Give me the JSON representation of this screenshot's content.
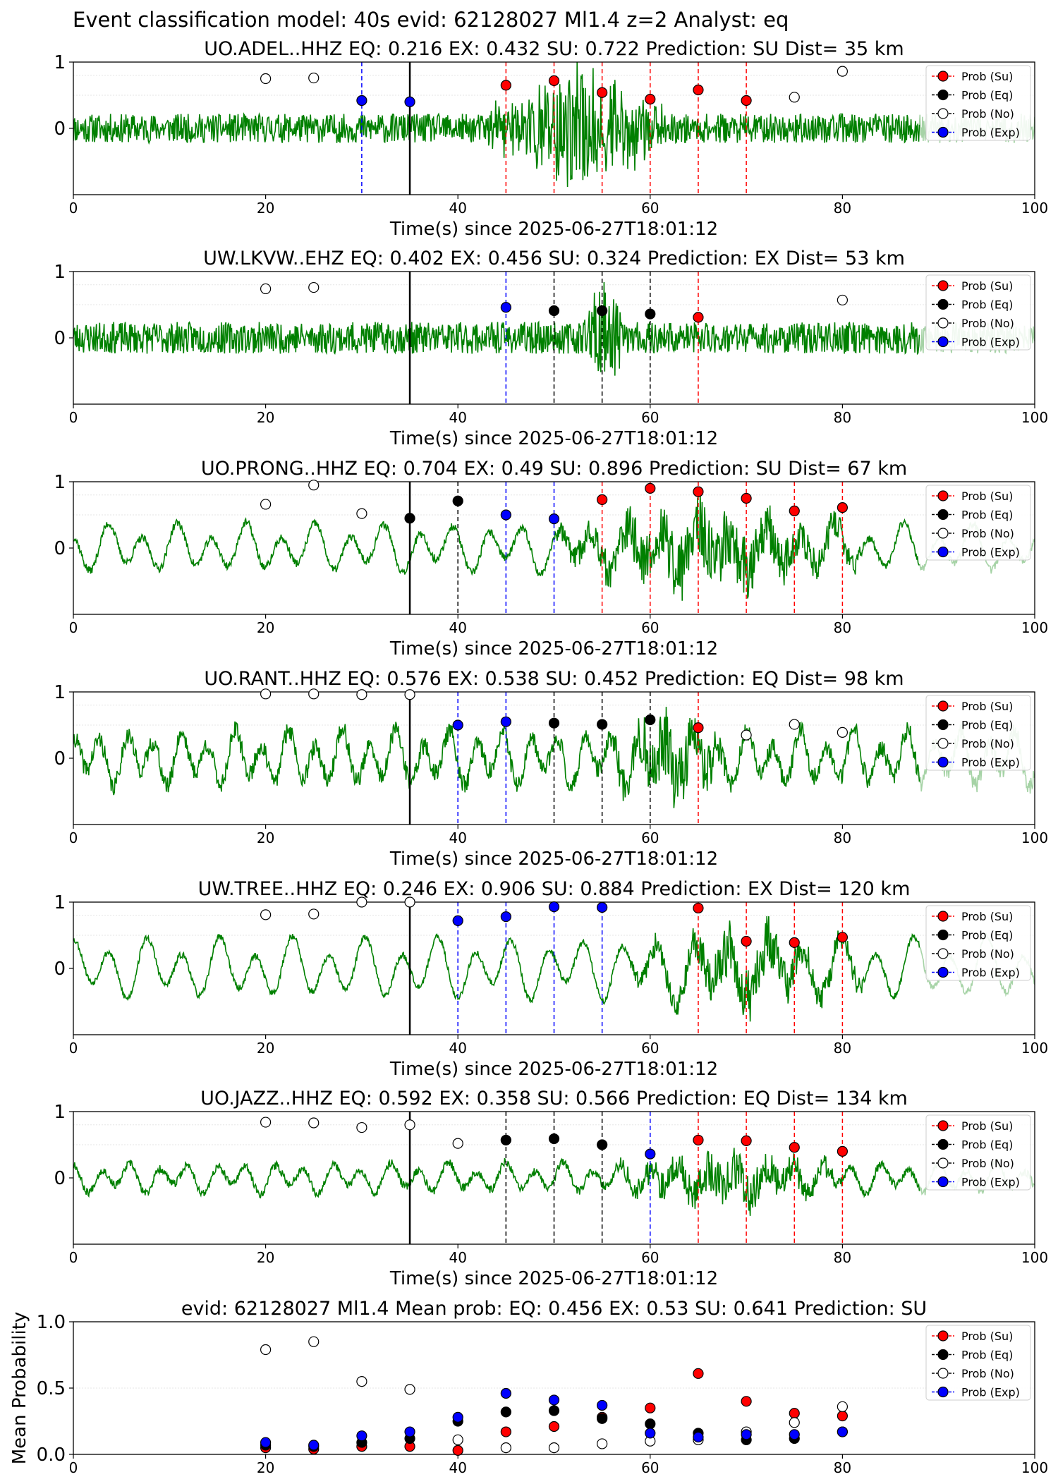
{
  "figure_title": "Event classification model: 40s evid: 62128027 Ml1.4 z=2 Analyst: eq",
  "legend_labels": [
    "Prob (Su)",
    "Prob (Eq)",
    "Prob (No)",
    "Prob (Exp)"
  ],
  "colors": {
    "su": "#ff0000",
    "eq": "#000000",
    "no": "#ffffff",
    "exp": "#0000ff",
    "waveform": "#008000",
    "vline_solid": "#000000"
  },
  "chart_data": [
    {
      "type": "line",
      "title": "UO.ADEL..HHZ   EQ: 0.216  EX: 0.432  SU: 0.722   Prediction: SU    Dist= 35 km",
      "xlabel": "Time(s) since 2025-06-27T18:01:12",
      "ylabel": "",
      "xlim": [
        0,
        100
      ],
      "ylim": [
        -1,
        1
      ],
      "xticks": [
        "0",
        "20",
        "40",
        "60",
        "80",
        "100"
      ],
      "yticks": [
        "0",
        "1"
      ],
      "waveform": {
        "style": "noise",
        "noise_amp": 0.22,
        "burst_start": 43,
        "burst_end": 62,
        "burst_amp": 0.85,
        "seed": 11
      },
      "solid_line_x": 35,
      "dashed_lines": [
        {
          "x": 30,
          "cls": "exp"
        },
        {
          "x": 45,
          "cls": "su"
        },
        {
          "x": 50,
          "cls": "su"
        },
        {
          "x": 55,
          "cls": "su"
        },
        {
          "x": 60,
          "cls": "su"
        },
        {
          "x": 65,
          "cls": "su"
        },
        {
          "x": 70,
          "cls": "su"
        }
      ],
      "points": [
        {
          "x": 20,
          "y": 0.75,
          "cls": "no"
        },
        {
          "x": 25,
          "y": 0.76,
          "cls": "no"
        },
        {
          "x": 30,
          "y": 0.42,
          "cls": "exp"
        },
        {
          "x": 35,
          "y": 0.4,
          "cls": "exp"
        },
        {
          "x": 45,
          "y": 0.65,
          "cls": "su"
        },
        {
          "x": 50,
          "y": 0.72,
          "cls": "su"
        },
        {
          "x": 55,
          "y": 0.54,
          "cls": "su"
        },
        {
          "x": 60,
          "y": 0.44,
          "cls": "su"
        },
        {
          "x": 65,
          "y": 0.58,
          "cls": "su"
        },
        {
          "x": 70,
          "y": 0.42,
          "cls": "su"
        },
        {
          "x": 75,
          "y": 0.47,
          "cls": "no"
        },
        {
          "x": 80,
          "y": 0.86,
          "cls": "no"
        }
      ]
    },
    {
      "type": "line",
      "title": "UW.LKVW..EHZ   EQ: 0.402  EX: 0.456  SU: 0.324   Prediction: EX    Dist= 53 km",
      "xlabel": "Time(s) since 2025-06-27T18:01:12",
      "ylabel": "",
      "xlim": [
        0,
        100
      ],
      "ylim": [
        -1,
        1
      ],
      "xticks": [
        "0",
        "20",
        "40",
        "60",
        "80",
        "100"
      ],
      "yticks": [
        "0",
        "1"
      ],
      "waveform": {
        "style": "noise",
        "noise_amp": 0.24,
        "burst_start": 53,
        "burst_end": 57,
        "burst_amp": 0.85,
        "seed": 23
      },
      "solid_line_x": 35,
      "dashed_lines": [
        {
          "x": 45,
          "cls": "exp"
        },
        {
          "x": 50,
          "cls": "eq"
        },
        {
          "x": 55,
          "cls": "eq"
        },
        {
          "x": 60,
          "cls": "eq"
        },
        {
          "x": 65,
          "cls": "su"
        }
      ],
      "points": [
        {
          "x": 20,
          "y": 0.74,
          "cls": "no"
        },
        {
          "x": 25,
          "y": 0.76,
          "cls": "no"
        },
        {
          "x": 45,
          "y": 0.46,
          "cls": "exp"
        },
        {
          "x": 50,
          "y": 0.41,
          "cls": "eq"
        },
        {
          "x": 55,
          "y": 0.41,
          "cls": "eq"
        },
        {
          "x": 60,
          "y": 0.36,
          "cls": "eq"
        },
        {
          "x": 65,
          "y": 0.31,
          "cls": "su"
        },
        {
          "x": 80,
          "y": 0.57,
          "cls": "no"
        }
      ]
    },
    {
      "type": "line",
      "title": "UO.PRONG..HHZ   EQ: 0.704  EX: 0.49  SU: 0.896   Prediction: SU    Dist= 67 km",
      "xlabel": "Time(s) since 2025-06-27T18:01:12",
      "ylabel": "",
      "xlim": [
        0,
        100
      ],
      "ylim": [
        -1,
        1
      ],
      "xticks": [
        "0",
        "20",
        "40",
        "60",
        "80",
        "100"
      ],
      "yticks": [
        "0",
        "1"
      ],
      "waveform": {
        "style": "wave",
        "wave_amp": 0.35,
        "period": 3.6,
        "noise_amp": 0.06,
        "burst_start": 50,
        "burst_end": 82,
        "burst_amp": 0.55,
        "seed": 37
      },
      "solid_line_x": 35,
      "dashed_lines": [
        {
          "x": 40,
          "cls": "eq"
        },
        {
          "x": 45,
          "cls": "exp"
        },
        {
          "x": 50,
          "cls": "exp"
        },
        {
          "x": 55,
          "cls": "su"
        },
        {
          "x": 60,
          "cls": "su"
        },
        {
          "x": 65,
          "cls": "su"
        },
        {
          "x": 70,
          "cls": "su"
        },
        {
          "x": 75,
          "cls": "su"
        },
        {
          "x": 80,
          "cls": "su"
        }
      ],
      "points": [
        {
          "x": 20,
          "y": 0.66,
          "cls": "no"
        },
        {
          "x": 25,
          "y": 0.95,
          "cls": "no"
        },
        {
          "x": 30,
          "y": 0.52,
          "cls": "no"
        },
        {
          "x": 35,
          "y": 0.45,
          "cls": "eq"
        },
        {
          "x": 40,
          "y": 0.71,
          "cls": "eq"
        },
        {
          "x": 45,
          "y": 0.5,
          "cls": "exp"
        },
        {
          "x": 50,
          "y": 0.44,
          "cls": "exp"
        },
        {
          "x": 55,
          "y": 0.73,
          "cls": "su"
        },
        {
          "x": 60,
          "y": 0.9,
          "cls": "su"
        },
        {
          "x": 65,
          "y": 0.85,
          "cls": "su"
        },
        {
          "x": 70,
          "y": 0.75,
          "cls": "su"
        },
        {
          "x": 75,
          "y": 0.56,
          "cls": "su"
        },
        {
          "x": 80,
          "y": 0.61,
          "cls": "su"
        }
      ]
    },
    {
      "type": "line",
      "title": "UO.RANT..HHZ   EQ: 0.576  EX: 0.538  SU: 0.452   Prediction: EQ    Dist= 98 km",
      "xlabel": "Time(s) since 2025-06-27T18:01:12",
      "ylabel": "",
      "xlim": [
        0,
        100
      ],
      "ylim": [
        -1,
        1
      ],
      "xticks": [
        "0",
        "20",
        "40",
        "60",
        "80",
        "100"
      ],
      "yticks": [
        "0",
        "1"
      ],
      "waveform": {
        "style": "wave",
        "wave_amp": 0.4,
        "period": 2.8,
        "noise_amp": 0.14,
        "burst_start": 56,
        "burst_end": 68,
        "burst_amp": 0.55,
        "seed": 41
      },
      "solid_line_x": 35,
      "dashed_lines": [
        {
          "x": 40,
          "cls": "exp"
        },
        {
          "x": 45,
          "cls": "exp"
        },
        {
          "x": 50,
          "cls": "eq"
        },
        {
          "x": 55,
          "cls": "eq"
        },
        {
          "x": 60,
          "cls": "eq"
        },
        {
          "x": 65,
          "cls": "su"
        }
      ],
      "points": [
        {
          "x": 20,
          "y": 0.97,
          "cls": "no"
        },
        {
          "x": 25,
          "y": 0.97,
          "cls": "no"
        },
        {
          "x": 30,
          "y": 0.96,
          "cls": "no"
        },
        {
          "x": 35,
          "y": 0.96,
          "cls": "no"
        },
        {
          "x": 40,
          "y": 0.5,
          "cls": "exp"
        },
        {
          "x": 45,
          "y": 0.55,
          "cls": "exp"
        },
        {
          "x": 50,
          "y": 0.53,
          "cls": "eq"
        },
        {
          "x": 55,
          "y": 0.51,
          "cls": "eq"
        },
        {
          "x": 60,
          "y": 0.58,
          "cls": "eq"
        },
        {
          "x": 65,
          "y": 0.46,
          "cls": "su"
        },
        {
          "x": 70,
          "y": 0.35,
          "cls": "no"
        },
        {
          "x": 75,
          "y": 0.51,
          "cls": "no"
        },
        {
          "x": 80,
          "y": 0.39,
          "cls": "no"
        }
      ]
    },
    {
      "type": "line",
      "title": "UW.TREE..HHZ   EQ: 0.246  EX: 0.906  SU: 0.884   Prediction: EX    Dist= 120 km",
      "xlabel": "Time(s) since 2025-06-27T18:01:12",
      "ylabel": "",
      "xlim": [
        0,
        100
      ],
      "ylim": [
        -1,
        1
      ],
      "xticks": [
        "0",
        "20",
        "40",
        "60",
        "80",
        "100"
      ],
      "yticks": [
        "0",
        "1"
      ],
      "waveform": {
        "style": "wave",
        "wave_amp": 0.45,
        "period": 3.8,
        "noise_amp": 0.05,
        "burst_start": 58,
        "burst_end": 82,
        "burst_amp": 0.45,
        "seed": 53
      },
      "solid_line_x": 35,
      "dashed_lines": [
        {
          "x": 40,
          "cls": "exp"
        },
        {
          "x": 45,
          "cls": "exp"
        },
        {
          "x": 50,
          "cls": "exp"
        },
        {
          "x": 55,
          "cls": "exp"
        },
        {
          "x": 65,
          "cls": "su"
        },
        {
          "x": 70,
          "cls": "su"
        },
        {
          "x": 75,
          "cls": "su"
        },
        {
          "x": 80,
          "cls": "su"
        }
      ],
      "points": [
        {
          "x": 20,
          "y": 0.81,
          "cls": "no"
        },
        {
          "x": 25,
          "y": 0.82,
          "cls": "no"
        },
        {
          "x": 30,
          "y": 1.0,
          "cls": "no"
        },
        {
          "x": 35,
          "y": 1.0,
          "cls": "no"
        },
        {
          "x": 40,
          "y": 0.72,
          "cls": "exp"
        },
        {
          "x": 45,
          "y": 0.78,
          "cls": "exp"
        },
        {
          "x": 50,
          "y": 0.93,
          "cls": "exp"
        },
        {
          "x": 55,
          "y": 0.92,
          "cls": "exp"
        },
        {
          "x": 65,
          "y": 0.91,
          "cls": "su"
        },
        {
          "x": 70,
          "y": 0.41,
          "cls": "su"
        },
        {
          "x": 75,
          "y": 0.39,
          "cls": "su"
        },
        {
          "x": 80,
          "y": 0.47,
          "cls": "su"
        }
      ]
    },
    {
      "type": "line",
      "title": "UO.JAZZ..HHZ   EQ: 0.592  EX: 0.358  SU: 0.566   Prediction: EQ    Dist= 134 km",
      "xlabel": "Time(s) since 2025-06-27T18:01:12",
      "ylabel": "",
      "xlim": [
        0,
        100
      ],
      "ylim": [
        -1,
        1
      ],
      "xticks": [
        "0",
        "20",
        "40",
        "60",
        "80",
        "100"
      ],
      "yticks": [
        "0",
        "1"
      ],
      "waveform": {
        "style": "wave",
        "wave_amp": 0.22,
        "period": 3.0,
        "noise_amp": 0.06,
        "burst_start": 56,
        "burst_end": 80,
        "burst_amp": 0.35,
        "seed": 67
      },
      "solid_line_x": 35,
      "dashed_lines": [
        {
          "x": 45,
          "cls": "eq"
        },
        {
          "x": 50,
          "cls": "eq"
        },
        {
          "x": 55,
          "cls": "eq"
        },
        {
          "x": 60,
          "cls": "exp"
        },
        {
          "x": 65,
          "cls": "su"
        },
        {
          "x": 70,
          "cls": "su"
        },
        {
          "x": 75,
          "cls": "su"
        },
        {
          "x": 80,
          "cls": "su"
        }
      ],
      "points": [
        {
          "x": 20,
          "y": 0.84,
          "cls": "no"
        },
        {
          "x": 25,
          "y": 0.83,
          "cls": "no"
        },
        {
          "x": 30,
          "y": 0.76,
          "cls": "no"
        },
        {
          "x": 35,
          "y": 0.8,
          "cls": "no"
        },
        {
          "x": 40,
          "y": 0.52,
          "cls": "no"
        },
        {
          "x": 45,
          "y": 0.57,
          "cls": "eq"
        },
        {
          "x": 50,
          "y": 0.59,
          "cls": "eq"
        },
        {
          "x": 55,
          "y": 0.5,
          "cls": "eq"
        },
        {
          "x": 60,
          "y": 0.36,
          "cls": "exp"
        },
        {
          "x": 65,
          "y": 0.57,
          "cls": "su"
        },
        {
          "x": 70,
          "y": 0.56,
          "cls": "su"
        },
        {
          "x": 75,
          "y": 0.46,
          "cls": "su"
        },
        {
          "x": 80,
          "y": 0.4,
          "cls": "su"
        }
      ]
    },
    {
      "type": "scatter",
      "title": "evid: 62128027  Ml1.4   Mean prob:   EQ: 0.456  EX: 0.53  SU: 0.641   Prediction: SU",
      "xlabel": "",
      "ylabel": "Mean Probability",
      "xlim": [
        0,
        100
      ],
      "ylim": [
        0,
        1
      ],
      "xticks": [
        "0",
        "20",
        "40",
        "60",
        "80",
        "100"
      ],
      "yticks": [
        "0.0",
        "0.5",
        "1.0"
      ],
      "series": [
        {
          "name": "Prob (Su)",
          "cls": "su",
          "x": [
            20,
            25,
            30,
            35,
            40,
            45,
            50,
            55,
            60,
            65,
            70,
            75,
            80
          ],
          "y": [
            0.05,
            0.04,
            0.06,
            0.06,
            0.03,
            0.17,
            0.21,
            0.28,
            0.35,
            0.61,
            0.4,
            0.31,
            0.29
          ]
        },
        {
          "name": "Prob (Eq)",
          "cls": "eq",
          "x": [
            20,
            25,
            30,
            35,
            40,
            45,
            50,
            55,
            60,
            65,
            70,
            75,
            80
          ],
          "y": [
            0.07,
            0.06,
            0.09,
            0.12,
            0.25,
            0.32,
            0.33,
            0.27,
            0.23,
            0.16,
            0.11,
            0.12,
            0.17
          ]
        },
        {
          "name": "Prob (No)",
          "cls": "no",
          "x": [
            20,
            25,
            30,
            35,
            40,
            45,
            50,
            55,
            60,
            65,
            70,
            75,
            80
          ],
          "y": [
            0.79,
            0.85,
            0.55,
            0.49,
            0.11,
            0.05,
            0.05,
            0.08,
            0.1,
            0.11,
            0.17,
            0.24,
            0.36
          ]
        },
        {
          "name": "Prob (Exp)",
          "cls": "exp",
          "x": [
            20,
            25,
            30,
            35,
            40,
            45,
            50,
            55,
            60,
            65,
            70,
            75,
            80
          ],
          "y": [
            0.09,
            0.07,
            0.14,
            0.17,
            0.28,
            0.46,
            0.41,
            0.37,
            0.16,
            0.13,
            0.15,
            0.15,
            0.17
          ]
        }
      ]
    }
  ]
}
